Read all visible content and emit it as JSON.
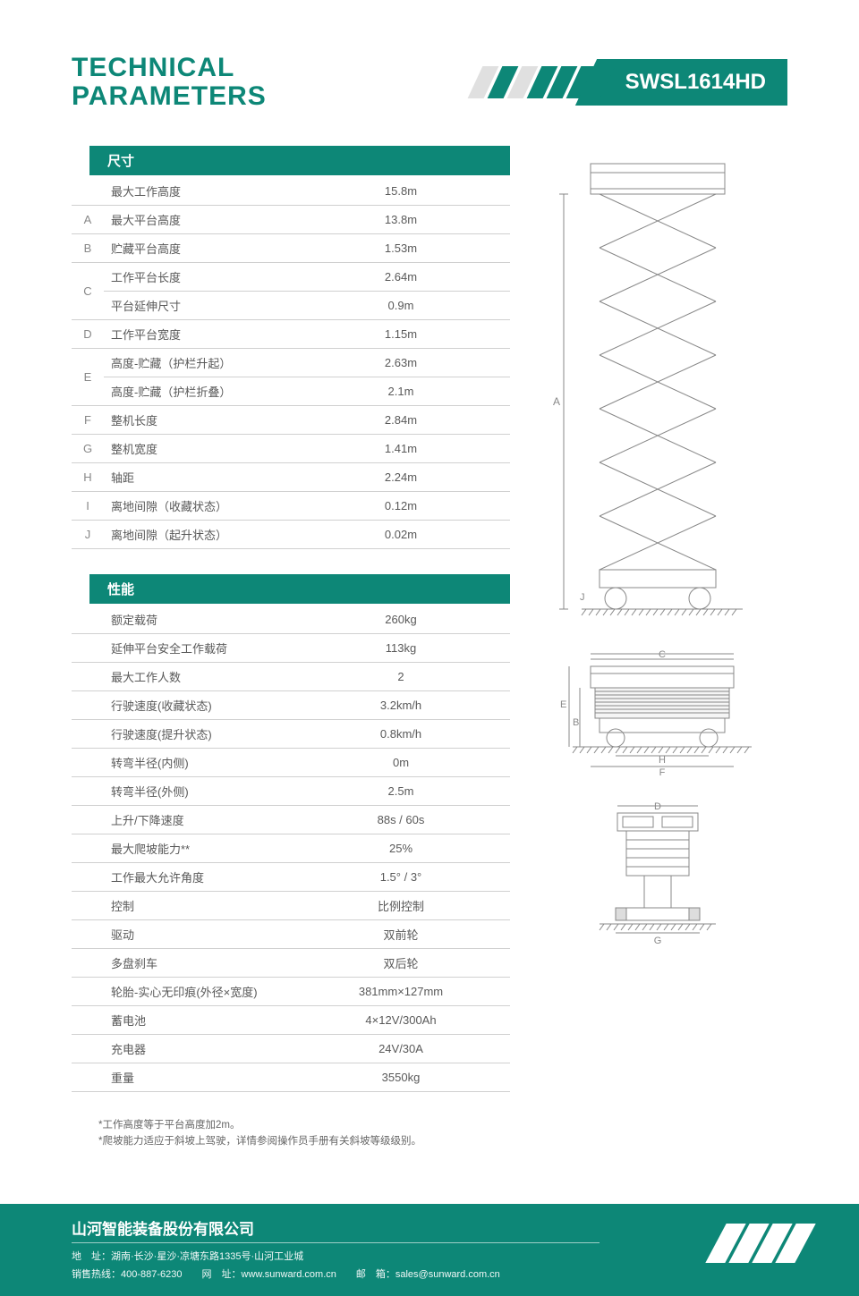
{
  "header": {
    "title_line1": "TECHNICAL",
    "title_line2": "PARAMETERS",
    "product": "SWSL1614HD",
    "brand_color": "#0d8777",
    "slash_colors": [
      "#e0e0e0",
      "#0d8777",
      "#e0e0e0",
      "#0d8777",
      "#0d8777",
      "#0d8777"
    ]
  },
  "sections": {
    "dimensions": {
      "header": "尺寸",
      "rows": [
        {
          "code": "",
          "label": "最大工作高度",
          "value": "15.8m"
        },
        {
          "code": "A",
          "label": "最大平台高度",
          "value": "13.8m"
        },
        {
          "code": "B",
          "label": "贮藏平台高度",
          "value": "1.53m"
        },
        {
          "code": "C",
          "label": "工作平台长度",
          "value": "2.64m",
          "rowspan_start": true
        },
        {
          "code": "",
          "label": "平台延伸尺寸",
          "value": "0.9m"
        },
        {
          "code": "D",
          "label": "工作平台宽度",
          "value": "1.15m"
        },
        {
          "code": "E",
          "label": "高度-贮藏（护栏升起）",
          "value": "2.63m",
          "rowspan_start": true
        },
        {
          "code": "",
          "label": "高度-贮藏（护栏折叠）",
          "value": "2.1m"
        },
        {
          "code": "F",
          "label": "整机长度",
          "value": "2.84m"
        },
        {
          "code": "G",
          "label": "整机宽度",
          "value": "1.41m"
        },
        {
          "code": "H",
          "label": "轴距",
          "value": "2.24m"
        },
        {
          "code": "I",
          "label": "离地间隙（收藏状态）",
          "value": "0.12m"
        },
        {
          "code": "J",
          "label": "离地间隙（起升状态）",
          "value": "0.02m"
        }
      ]
    },
    "performance": {
      "header": "性能",
      "rows": [
        {
          "label": "额定载荷",
          "value": "260kg"
        },
        {
          "label": "延伸平台安全工作载荷",
          "value": "113kg"
        },
        {
          "label": "最大工作人数",
          "value": "2"
        },
        {
          "label": "行驶速度(收藏状态)",
          "value": "3.2km/h"
        },
        {
          "label": "行驶速度(提升状态)",
          "value": "0.8km/h"
        },
        {
          "label": "转弯半径(内侧)",
          "value": "0m"
        },
        {
          "label": "转弯半径(外侧)",
          "value": "2.5m"
        },
        {
          "label": "上升/下降速度",
          "value": "88s / 60s"
        },
        {
          "label": "最大爬坡能力**",
          "value": "25%"
        },
        {
          "label": "工作最大允许角度",
          "value": "1.5° / 3°"
        },
        {
          "label": "控制",
          "value": "比例控制"
        },
        {
          "label": "驱动",
          "value": "双前轮"
        },
        {
          "label": "多盘刹车",
          "value": "双后轮"
        },
        {
          "label": "轮胎-实心无印痕(外径×宽度)",
          "value": "381mm×127mm"
        },
        {
          "label": "蓄电池",
          "value": "4×12V/300Ah"
        },
        {
          "label": "充电器",
          "value": "24V/30A"
        },
        {
          "label": "重量",
          "value": "3550kg"
        }
      ]
    }
  },
  "footnotes": [
    "*工作高度等于平台高度加2m。",
    "*爬坡能力适应于斜坡上驾驶，详情参阅操作员手册有关斜坡等级级别。"
  ],
  "diagram": {
    "stroke": "#888888",
    "stroke_width": 1,
    "labels": {
      "A": "A",
      "C": "C",
      "E": "E",
      "B": "B",
      "H": "H",
      "F": "F",
      "D": "D",
      "G": "G",
      "J": "J"
    }
  },
  "footer": {
    "company": "山河智能装备股份有限公司",
    "address": "地　址：湖南·长沙·星沙·凉塘东路1335号·山河工业城",
    "contact": "销售热线：400-887-6230　　网　址：www.sunward.com.cn　　邮　箱：sales@sunward.com.cn"
  }
}
